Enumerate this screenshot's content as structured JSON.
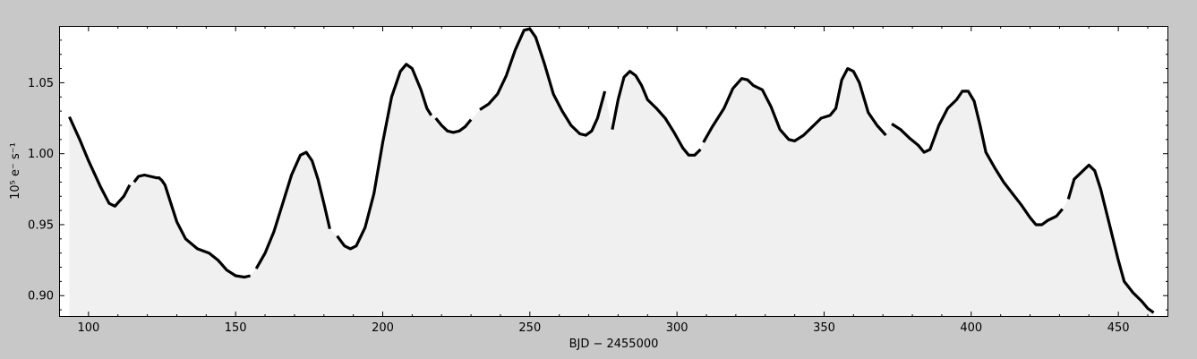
{
  "chart_data": {
    "type": "line",
    "title": "",
    "xlabel": "BJD − 2455000",
    "ylabel": "10⁵ e⁻ s⁻¹",
    "xlim": [
      90,
      467
    ],
    "ylim": [
      0.885,
      1.09
    ],
    "xticks": [
      100,
      150,
      200,
      250,
      300,
      350,
      400,
      450
    ],
    "xtick_labels": [
      "100",
      "150",
      "200",
      "250",
      "300",
      "350",
      "400",
      "450"
    ],
    "yticks": [
      0.9,
      0.95,
      1.0,
      1.05
    ],
    "ytick_labels": [
      "0.90",
      "0.95",
      "1.00",
      "1.05"
    ],
    "grid": false,
    "legend": "none",
    "fill_below": true,
    "colors": {
      "figure_bg": "#c8c8c8",
      "axes_bg": "#ffffff",
      "fill": "#f0f0f0",
      "line": "#000000"
    },
    "series": [
      {
        "segments": [
          [
            [
              93.5,
              1.026
            ],
            [
              97,
              1.01
            ],
            [
              100,
              0.995
            ],
            [
              104,
              0.977
            ],
            [
              107,
              0.965
            ],
            [
              109,
              0.963
            ],
            [
              112,
              0.97
            ],
            [
              114,
              0.978
            ]
          ],
          [
            [
              115.5,
              0.98
            ],
            [
              117,
              0.984
            ],
            [
              119,
              0.985
            ],
            [
              121,
              0.984
            ],
            [
              123,
              0.983
            ],
            [
              124,
              0.983
            ],
            [
              125,
              0.981
            ],
            [
              126,
              0.978
            ],
            [
              128,
              0.965
            ],
            [
              130,
              0.952
            ],
            [
              133,
              0.94
            ],
            [
              137,
              0.933
            ],
            [
              141,
              0.93
            ],
            [
              144,
              0.925
            ],
            [
              147,
              0.918
            ],
            [
              150,
              0.914
            ],
            [
              153,
              0.913
            ],
            [
              155,
              0.914
            ]
          ],
          [
            [
              157,
              0.919
            ],
            [
              160,
              0.93
            ],
            [
              163,
              0.945
            ],
            [
              166,
              0.965
            ],
            [
              169,
              0.985
            ],
            [
              172,
              0.999
            ],
            [
              174,
              1.001
            ],
            [
              176,
              0.995
            ],
            [
              178,
              0.982
            ],
            [
              180,
              0.965
            ],
            [
              182,
              0.947
            ]
          ],
          [
            [
              184.5,
              0.942
            ],
            [
              187,
              0.935
            ],
            [
              189,
              0.933
            ],
            [
              191,
              0.935
            ],
            [
              194,
              0.948
            ],
            [
              197,
              0.972
            ],
            [
              200,
              1.008
            ],
            [
              203,
              1.04
            ],
            [
              206,
              1.058
            ],
            [
              208,
              1.063
            ],
            [
              210,
              1.06
            ],
            [
              213,
              1.045
            ],
            [
              215,
              1.032
            ],
            [
              216.5,
              1.027
            ]
          ],
          [
            [
              218,
              1.025
            ],
            [
              220,
              1.02
            ],
            [
              222,
              1.016
            ],
            [
              224,
              1.015
            ],
            [
              226,
              1.016
            ],
            [
              228,
              1.019
            ],
            [
              230,
              1.024
            ]
          ],
          [
            [
              233,
              1.031
            ],
            [
              236,
              1.035
            ],
            [
              239,
              1.042
            ],
            [
              242,
              1.055
            ],
            [
              245,
              1.073
            ],
            [
              248,
              1.087
            ],
            [
              250,
              1.088
            ],
            [
              252,
              1.082
            ],
            [
              255,
              1.063
            ],
            [
              258,
              1.042
            ],
            [
              261,
              1.03
            ],
            [
              264,
              1.02
            ],
            [
              267,
              1.014
            ],
            [
              269,
              1.013
            ],
            [
              271,
              1.016
            ],
            [
              273,
              1.025
            ],
            [
              275.5,
              1.044
            ]
          ],
          [
            [
              278,
              1.017
            ],
            [
              280,
              1.038
            ],
            [
              282,
              1.054
            ],
            [
              284,
              1.058
            ],
            [
              286,
              1.055
            ],
            [
              288,
              1.048
            ],
            [
              290,
              1.038
            ],
            [
              293,
              1.032
            ],
            [
              296,
              1.025
            ],
            [
              299,
              1.015
            ],
            [
              302,
              1.004
            ],
            [
              304,
              0.999
            ],
            [
              306,
              0.999
            ],
            [
              308,
              1.003
            ]
          ],
          [
            [
              309,
              1.008
            ],
            [
              312,
              1.019
            ],
            [
              316,
              1.032
            ],
            [
              319,
              1.046
            ],
            [
              322,
              1.053
            ],
            [
              324,
              1.052
            ],
            [
              326,
              1.048
            ],
            [
              329,
              1.045
            ],
            [
              332,
              1.033
            ],
            [
              335,
              1.017
            ],
            [
              338,
              1.01
            ],
            [
              340,
              1.009
            ],
            [
              343,
              1.013
            ],
            [
              346,
              1.019
            ],
            [
              349,
              1.025
            ],
            [
              352,
              1.027
            ],
            [
              354,
              1.032
            ],
            [
              356,
              1.052
            ],
            [
              358,
              1.06
            ],
            [
              360,
              1.058
            ],
            [
              362,
              1.05
            ],
            [
              365,
              1.029
            ],
            [
              368,
              1.02
            ],
            [
              371,
              1.013
            ]
          ],
          [
            [
              373,
              1.021
            ],
            [
              376,
              1.017
            ],
            [
              379,
              1.011
            ],
            [
              382,
              1.006
            ],
            [
              384,
              1.001
            ],
            [
              386,
              1.003
            ],
            [
              389,
              1.02
            ],
            [
              392,
              1.032
            ],
            [
              395,
              1.038
            ],
            [
              397,
              1.044
            ],
            [
              399,
              1.044
            ],
            [
              401,
              1.037
            ],
            [
              403,
              1.02
            ],
            [
              405,
              1.001
            ],
            [
              408,
              0.99
            ],
            [
              411,
              0.98
            ],
            [
              414,
              0.972
            ],
            [
              417,
              0.964
            ],
            [
              420,
              0.955
            ],
            [
              422,
              0.95
            ],
            [
              424,
              0.95
            ],
            [
              426,
              0.953
            ],
            [
              429,
              0.956
            ],
            [
              431,
              0.961
            ]
          ],
          [
            [
              433,
              0.968
            ],
            [
              435,
              0.982
            ],
            [
              438,
              0.988
            ],
            [
              440,
              0.992
            ],
            [
              442,
              0.988
            ],
            [
              444,
              0.975
            ],
            [
              447,
              0.95
            ],
            [
              450,
              0.925
            ],
            [
              452,
              0.91
            ],
            [
              455,
              0.902
            ],
            [
              458,
              0.896
            ],
            [
              460,
              0.891
            ],
            [
              462,
              0.888
            ]
          ]
        ]
      }
    ]
  }
}
